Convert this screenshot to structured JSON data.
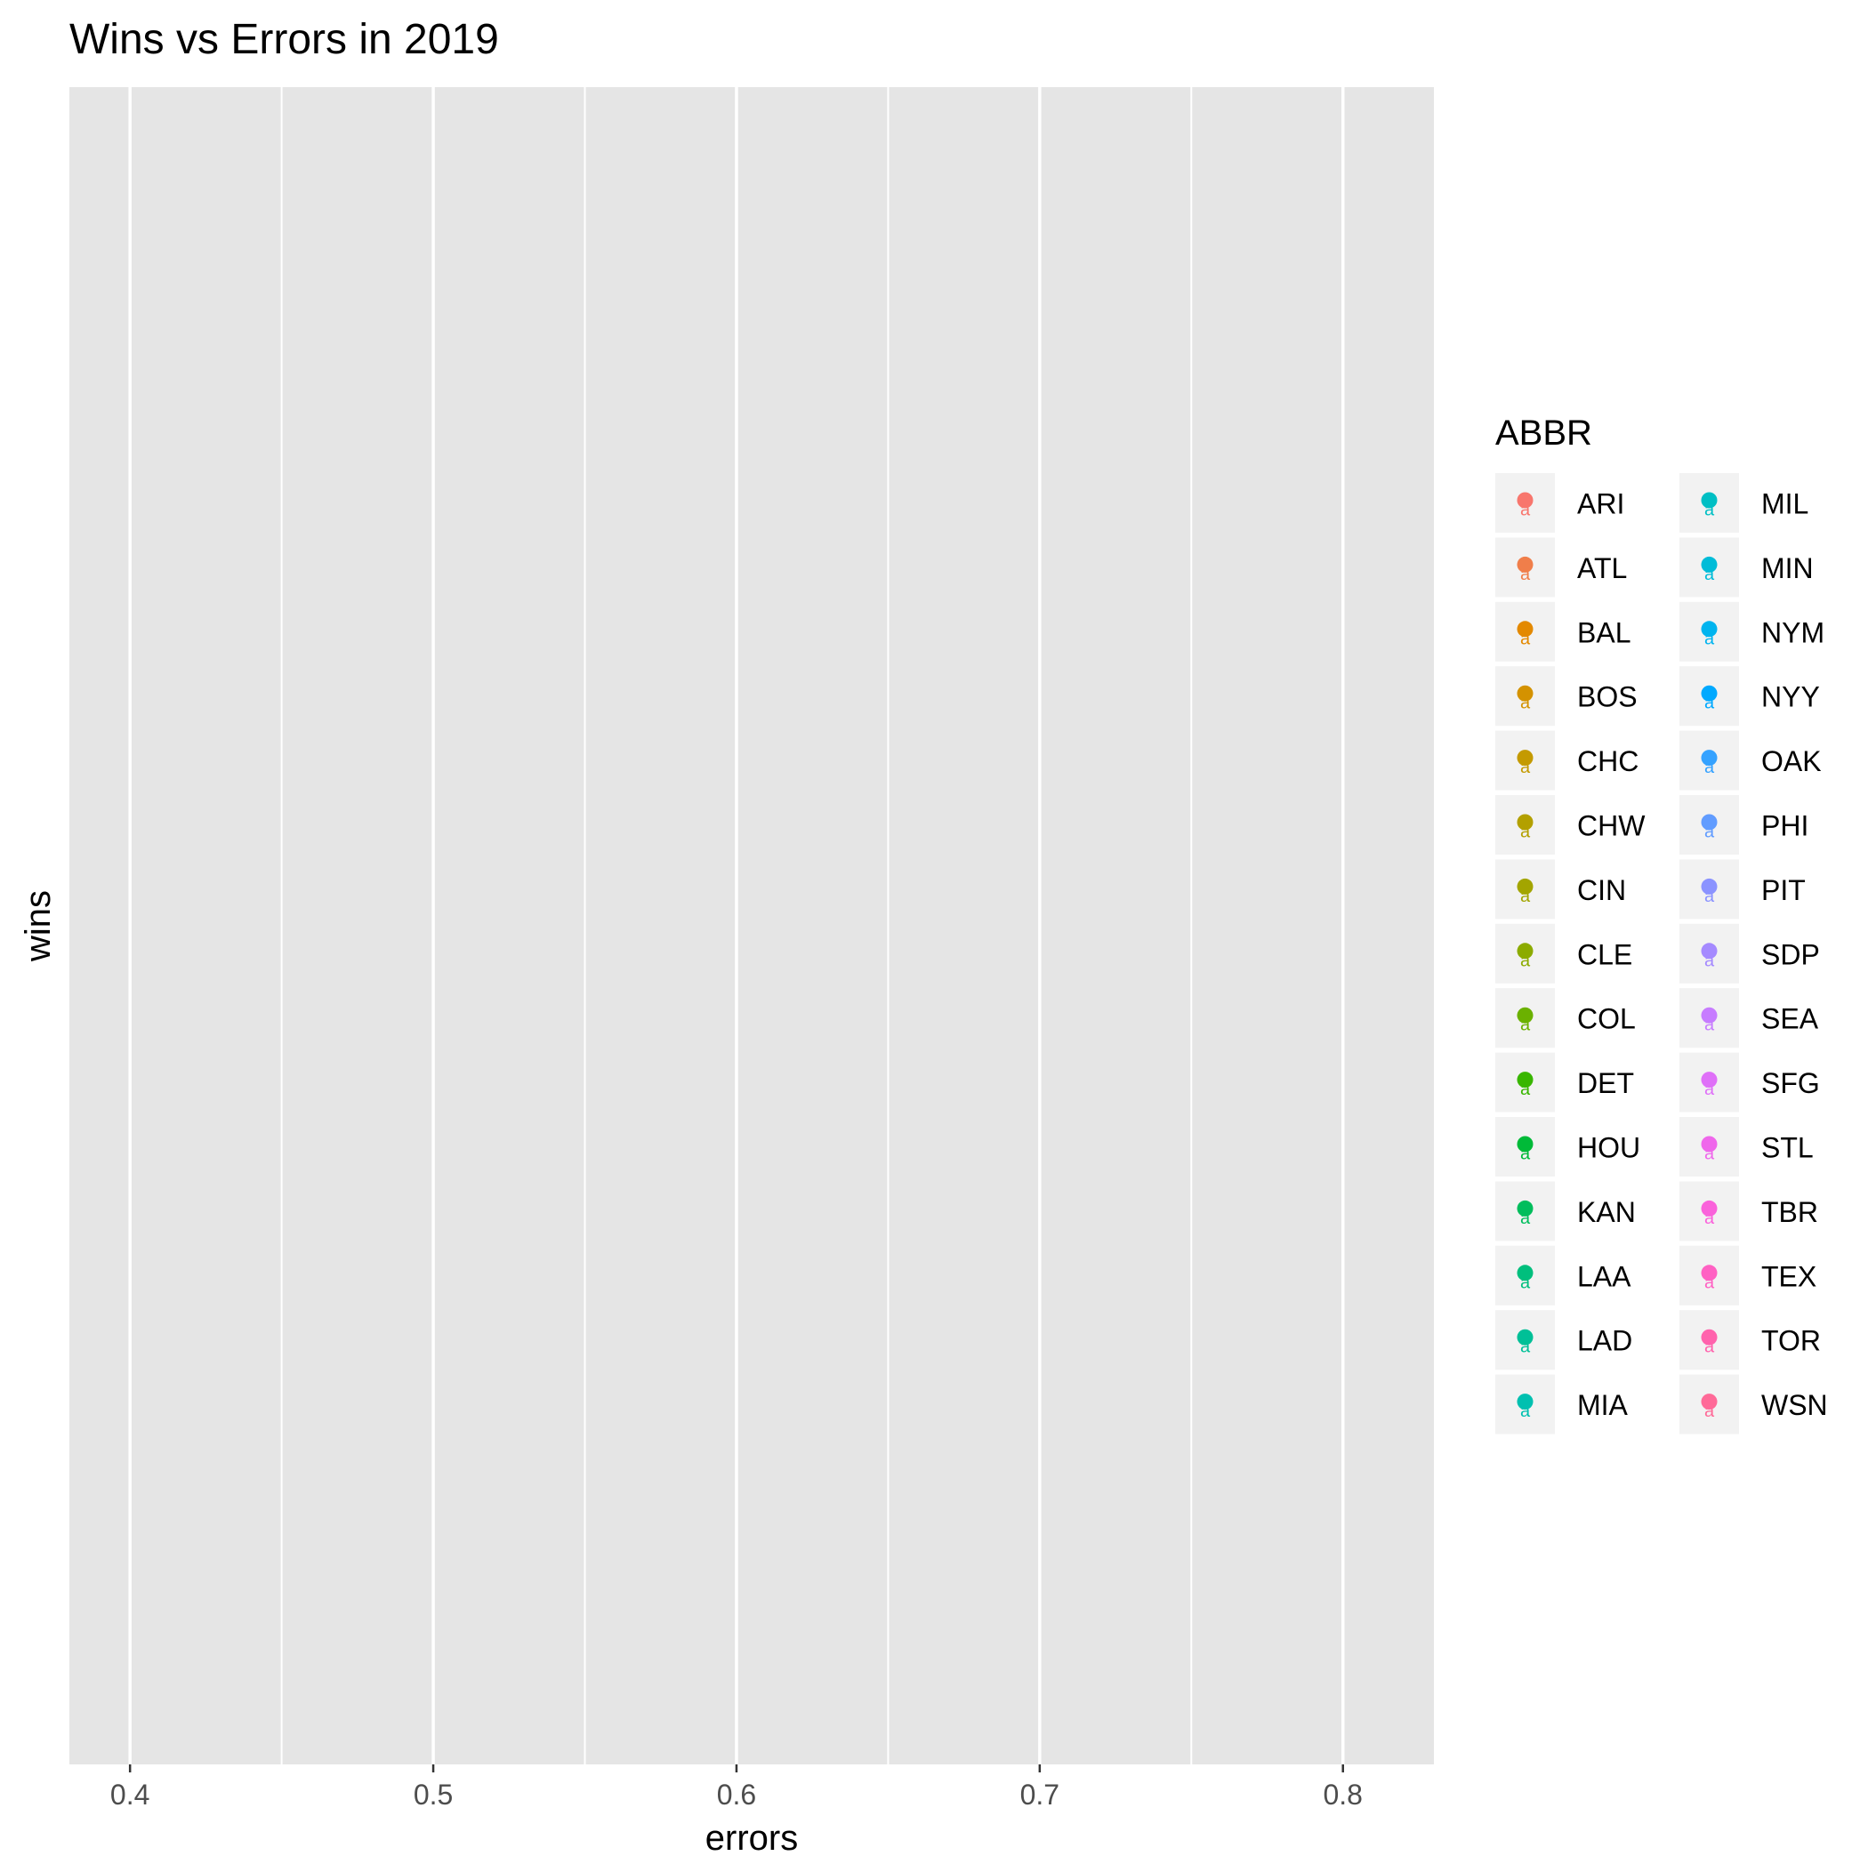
{
  "chart_data": {
    "type": "scatter",
    "title": "Wins vs Errors in 2019",
    "xlabel": "errors",
    "ylabel": "wins",
    "xlim": [
      0.38,
      0.83
    ],
    "x_ticks": [
      0.4,
      0.5,
      0.6,
      0.7,
      0.8
    ],
    "x_tick_labels": [
      "0.4",
      "0.5",
      "0.6",
      "0.7",
      "0.8"
    ],
    "x_minor_ticks": [
      0.45,
      0.55,
      0.65,
      0.75
    ],
    "y_ticks": [],
    "grid": true,
    "points": [],
    "legend": {
      "title": "ABBR",
      "position": "right",
      "columns": 2,
      "entries": [
        {
          "label": "ARI",
          "color": "#F8766D"
        },
        {
          "label": "ATL",
          "color": "#F07E4A"
        },
        {
          "label": "BAL",
          "color": "#E38900"
        },
        {
          "label": "BOS",
          "color": "#D49200"
        },
        {
          "label": "CHC",
          "color": "#C49A00"
        },
        {
          "label": "CHW",
          "color": "#B3A000"
        },
        {
          "label": "CIN",
          "color": "#A3A500"
        },
        {
          "label": "CLE",
          "color": "#8CAB00"
        },
        {
          "label": "COL",
          "color": "#6BB100"
        },
        {
          "label": "DET",
          "color": "#39B600"
        },
        {
          "label": "HOU",
          "color": "#00BA38"
        },
        {
          "label": "KAN",
          "color": "#00BD5C"
        },
        {
          "label": "LAA",
          "color": "#00BF7D"
        },
        {
          "label": "LAD",
          "color": "#00C097"
        },
        {
          "label": "MIA",
          "color": "#00C0B0"
        },
        {
          "label": "MIL",
          "color": "#00BFC4"
        },
        {
          "label": "MIN",
          "color": "#00BCD8"
        },
        {
          "label": "NYM",
          "color": "#00B4EF"
        },
        {
          "label": "NYY",
          "color": "#00A9FF"
        },
        {
          "label": "OAK",
          "color": "#35A2FF"
        },
        {
          "label": "PHI",
          "color": "#619CFF"
        },
        {
          "label": "PIT",
          "color": "#8B93FF"
        },
        {
          "label": "SDP",
          "color": "#A58AFF"
        },
        {
          "label": "SEA",
          "color": "#C77CFF"
        },
        {
          "label": "SFG",
          "color": "#DF70F8"
        },
        {
          "label": "STL",
          "color": "#EF67EB"
        },
        {
          "label": "TBR",
          "color": "#FA62DB"
        },
        {
          "label": "TEX",
          "color": "#FF61C3"
        },
        {
          "label": "TOR",
          "color": "#FF63AD"
        },
        {
          "label": "WSN",
          "color": "#FF6A98"
        }
      ],
      "key_glyph_text": "a"
    },
    "colors": {
      "panel_background": "#E5E5E5",
      "grid_major": "#FFFFFF",
      "legend_key_background": "#F2F2F2",
      "tick_label": "#4D4D4D",
      "text": "#000000"
    }
  }
}
